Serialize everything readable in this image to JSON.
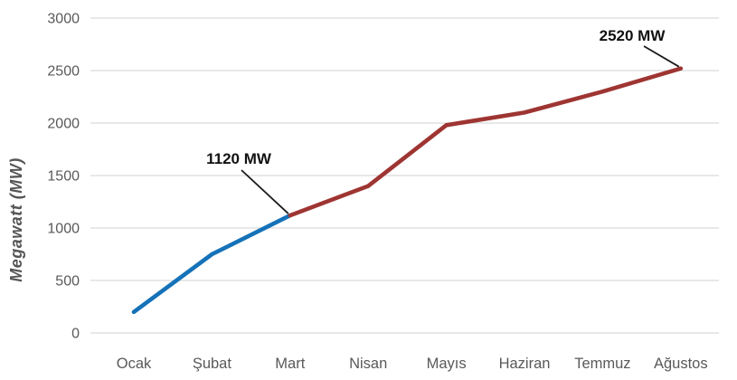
{
  "chart_data": {
    "type": "line",
    "title": "",
    "xlabel": "",
    "ylabel": "Megawatt  (MW)",
    "categories": [
      "Ocak",
      "Şubat",
      "Mart",
      "Nisan",
      "Mayıs",
      "Haziran",
      "Temmuz",
      "Ağustos"
    ],
    "values": [
      200,
      750,
      1120,
      1400,
      1980,
      2100,
      2300,
      2520
    ],
    "series": [
      {
        "name": "ocak-mart-segment",
        "color": "#1572B8",
        "from": 0,
        "to": 2
      },
      {
        "name": "mart-agustos-segment",
        "color": "#9E3532",
        "from": 2,
        "to": 7
      }
    ],
    "ylim": [
      0,
      3000
    ],
    "yticks": [
      0,
      500,
      1000,
      1500,
      2000,
      2500,
      3000
    ],
    "grid": true,
    "legend": "none",
    "annotations": [
      {
        "text": "1120 MW",
        "category": "Mart",
        "category_index": 2,
        "value": 1120
      },
      {
        "text": "2520 MW",
        "category": "Ağustos",
        "category_index": 7,
        "value": 2520
      }
    ],
    "colors": {
      "segment_blue": "#1572B8",
      "segment_red": "#9E3532",
      "gridline": "#D9D9D9",
      "tick_text": "#595959",
      "annotation_text": "#111111",
      "leader_line": "#1A1A1A",
      "background": "#FFFFFF"
    }
  }
}
